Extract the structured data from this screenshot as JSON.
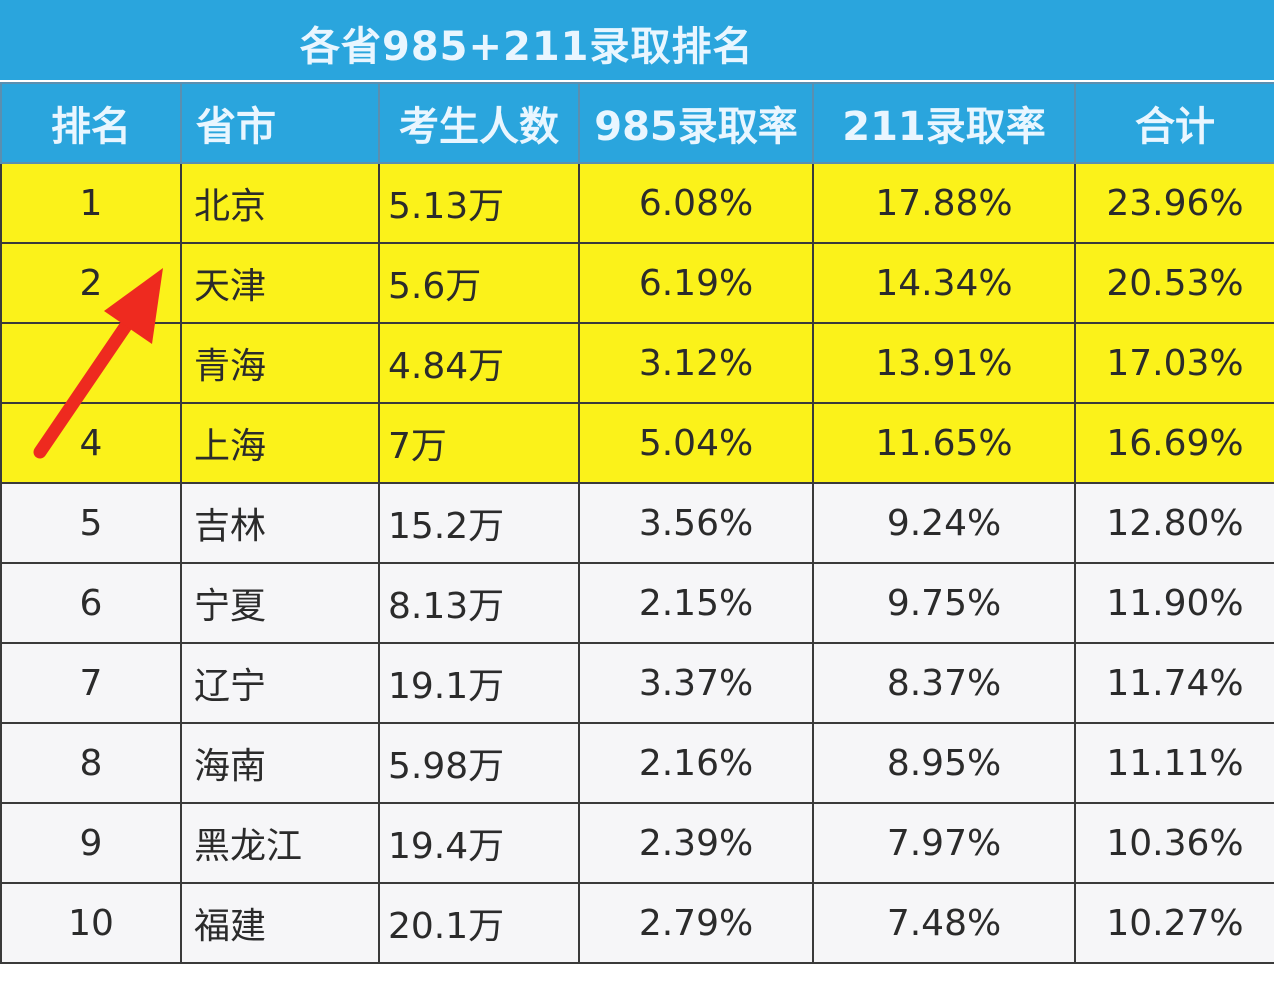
{
  "title": "各省985+211录取排名",
  "columns": [
    "排名",
    "省市",
    "考生人数",
    "985录取率",
    "211录取率",
    "合计"
  ],
  "rows": [
    [
      "1",
      "北京",
      "5.13万",
      "6.08%",
      "17.88%",
      "23.96%"
    ],
    [
      "2",
      "天津",
      "5.6万",
      "6.19%",
      "14.34%",
      "20.53%"
    ],
    [
      "",
      "青海",
      "4.84万",
      "3.12%",
      "13.91%",
      "17.03%"
    ],
    [
      "4",
      "上海",
      "7万",
      "5.04%",
      "11.65%",
      "16.69%"
    ],
    [
      "5",
      "吉林",
      "15.2万",
      "3.56%",
      "9.24%",
      "12.80%"
    ],
    [
      "6",
      "宁夏",
      "8.13万",
      "2.15%",
      "9.75%",
      "11.90%"
    ],
    [
      "7",
      "辽宁",
      "19.1万",
      "3.37%",
      "8.37%",
      "11.74%"
    ],
    [
      "8",
      "海南",
      "5.98万",
      "2.16%",
      "8.95%",
      "11.11%"
    ],
    [
      "9",
      "黑龙江",
      "19.4万",
      "2.39%",
      "7.97%",
      "10.36%"
    ],
    [
      "10",
      "福建",
      "20.1万",
      "2.79%",
      "7.48%",
      "10.27%"
    ]
  ],
  "highlighted_rows": 4,
  "colors": {
    "header_bg": "#2aa5dd",
    "highlight_bg": "#fbf21a",
    "arrow": "#ee2a1f"
  },
  "annotation_icon": "red-arrow-icon"
}
